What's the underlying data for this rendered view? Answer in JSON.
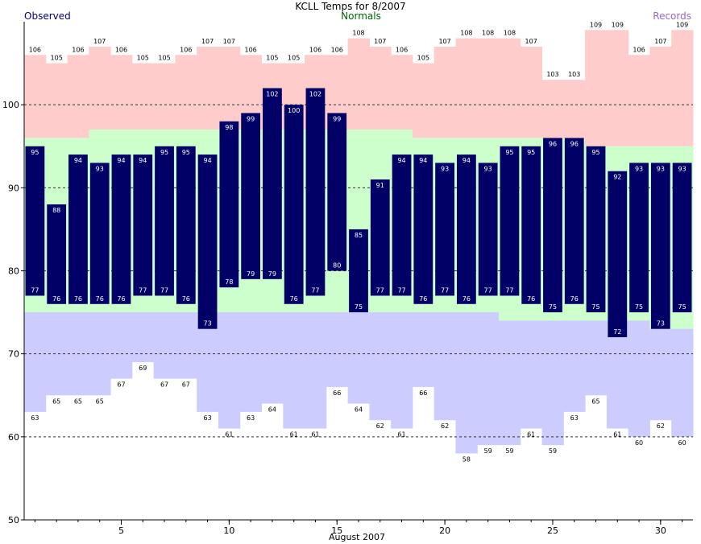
{
  "chart_data": {
    "type": "bar",
    "title": "KCLL Temps for 8/2007",
    "xlabel": "August 2007",
    "ylabel": "",
    "legend": {
      "observed": "Observed",
      "normals": "Normals",
      "records": "Records"
    },
    "colors": {
      "observed": "#000066",
      "normals": "#ccffcc",
      "record_high_band": "#ffcccc",
      "record_low_band": "#ccccff",
      "legend_observed": "#000080",
      "legend_normals": "#006600",
      "legend_records": "#9966cc",
      "bar_label": "#ffffff",
      "record_label": "#000000"
    },
    "ylim": [
      50,
      110
    ],
    "yticks": [
      50,
      60,
      70,
      80,
      90,
      100
    ],
    "gridlines": [
      60,
      70,
      80,
      90,
      100
    ],
    "xticks": [
      5,
      10,
      15,
      20,
      25,
      30
    ],
    "days": [
      1,
      2,
      3,
      4,
      5,
      6,
      7,
      8,
      9,
      10,
      11,
      12,
      13,
      14,
      15,
      16,
      17,
      18,
      19,
      20,
      21,
      22,
      23,
      24,
      25,
      26,
      27,
      28,
      29,
      30,
      31
    ],
    "observed_high": [
      95,
      88,
      94,
      93,
      94,
      94,
      95,
      95,
      94,
      98,
      99,
      102,
      100,
      102,
      99,
      85,
      91,
      94,
      94,
      93,
      94,
      93,
      95,
      95,
      96,
      96,
      95,
      92,
      93,
      93,
      93
    ],
    "observed_low": [
      77,
      76,
      76,
      76,
      76,
      77,
      77,
      76,
      73,
      78,
      79,
      79,
      76,
      77,
      80,
      75,
      77,
      77,
      76,
      77,
      76,
      77,
      77,
      76,
      75,
      76,
      75,
      72,
      75,
      73,
      75
    ],
    "normal_high": [
      96,
      96,
      96,
      97,
      97,
      97,
      97,
      97,
      97,
      97,
      97,
      97,
      97,
      97,
      97,
      97,
      97,
      97,
      96,
      96,
      96,
      96,
      96,
      96,
      96,
      96,
      95,
      95,
      95,
      95,
      95
    ],
    "normal_low": [
      75,
      75,
      75,
      75,
      75,
      75,
      75,
      75,
      75,
      75,
      75,
      75,
      75,
      75,
      75,
      75,
      75,
      75,
      75,
      75,
      75,
      75,
      74,
      74,
      74,
      74,
      74,
      74,
      74,
      73,
      73
    ],
    "record_high": [
      106,
      105,
      106,
      107,
      106,
      105,
      105,
      106,
      107,
      107,
      106,
      105,
      105,
      106,
      106,
      108,
      107,
      106,
      105,
      107,
      108,
      108,
      108,
      107,
      103,
      103,
      109,
      109,
      106,
      107,
      109
    ],
    "record_low": [
      63,
      65,
      65,
      65,
      67,
      69,
      67,
      67,
      63,
      61,
      63,
      64,
      61,
      61,
      66,
      64,
      62,
      61,
      66,
      62,
      58,
      59,
      59,
      61,
      59,
      63,
      65,
      61,
      60,
      62,
      60
    ]
  }
}
